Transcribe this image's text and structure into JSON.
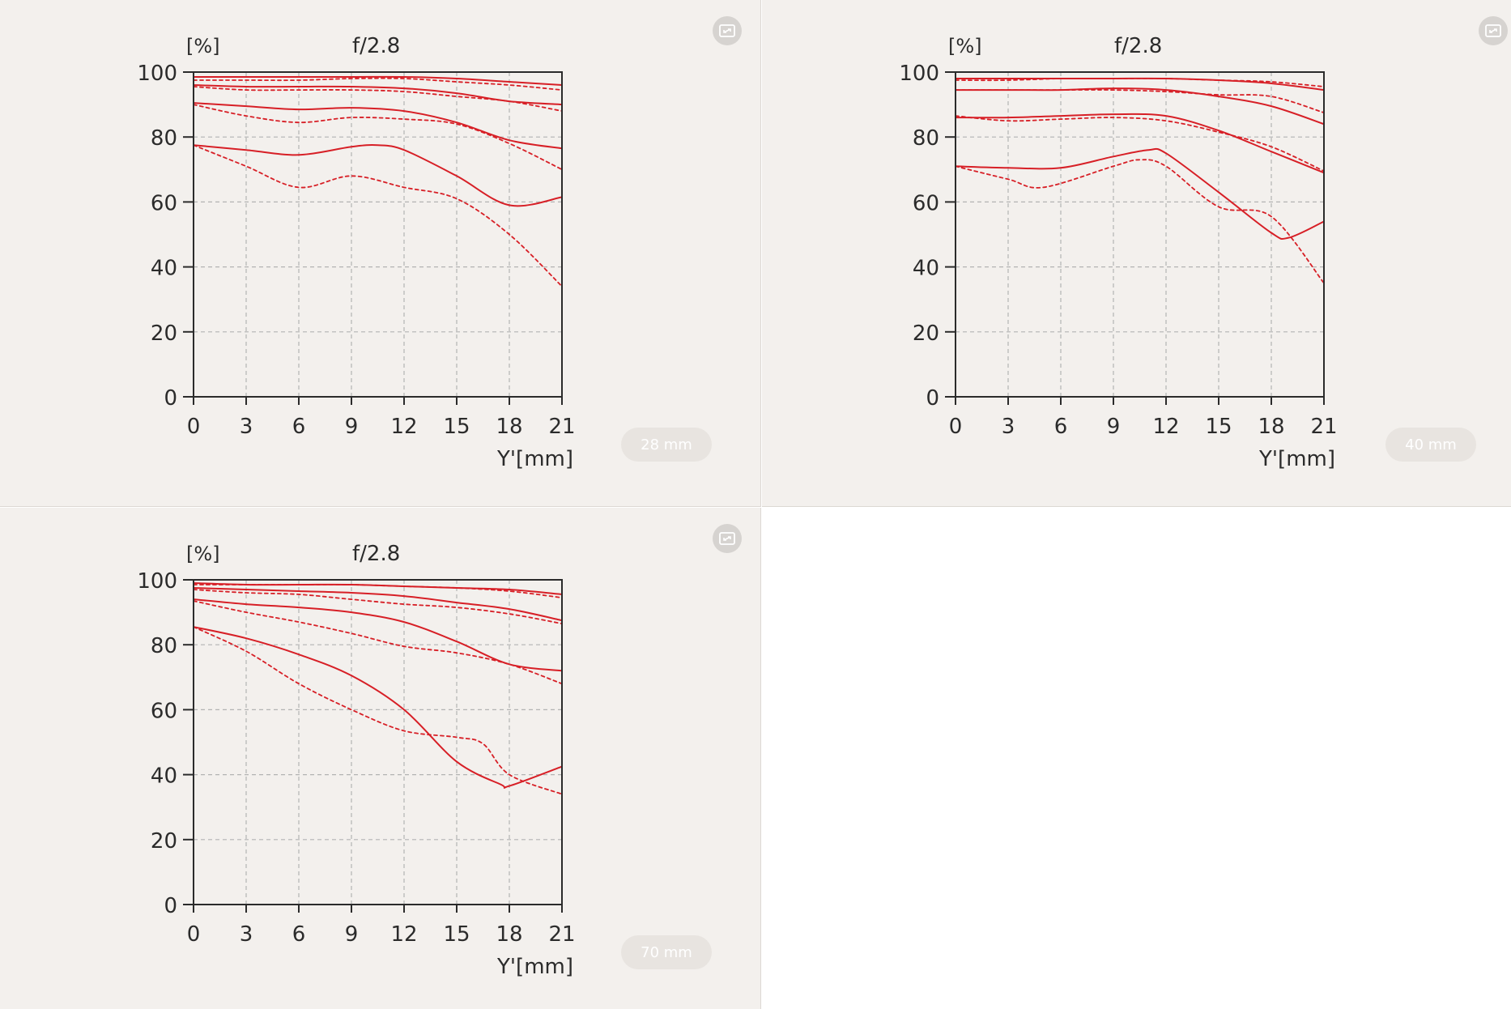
{
  "colors": {
    "curve": "#d71f26",
    "panel_bg": "#f3f0ed",
    "grid": "#b3b3b3",
    "axis": "#2b2b2b"
  },
  "icons": {
    "expand": "expand-icon"
  },
  "chart_data": [
    {
      "type": "line",
      "title": "f/2.8",
      "ylabel": "[%]",
      "xlabel": "Y'[mm]",
      "badge": "28 mm",
      "xlim": [
        0,
        21
      ],
      "ylim": [
        0,
        100
      ],
      "xticks": [
        0,
        3,
        6,
        9,
        12,
        15,
        18,
        21
      ],
      "yticks": [
        0,
        20,
        40,
        60,
        80,
        100
      ],
      "grid": true,
      "series": [
        {
          "style": "solid",
          "x": [
            0,
            3,
            6,
            9,
            12,
            15,
            18,
            21
          ],
          "y": [
            98.5,
            98.5,
            98.5,
            98.5,
            98.5,
            98,
            97,
            96
          ]
        },
        {
          "style": "dashed",
          "x": [
            0,
            3,
            6,
            9,
            12,
            15,
            18,
            21
          ],
          "y": [
            97.5,
            97.5,
            97.5,
            98,
            98,
            97,
            96,
            94.5
          ]
        },
        {
          "style": "solid",
          "x": [
            0,
            3,
            6,
            9,
            12,
            15,
            18,
            21
          ],
          "y": [
            96,
            95.5,
            95.5,
            95.5,
            95,
            93.5,
            91,
            90
          ]
        },
        {
          "style": "dashed",
          "x": [
            0,
            3,
            6,
            9,
            12,
            15,
            18,
            21
          ],
          "y": [
            95.5,
            94.5,
            94.5,
            94.5,
            94,
            92.5,
            91,
            88
          ]
        },
        {
          "style": "solid",
          "x": [
            0,
            3,
            6,
            9,
            12,
            15,
            18,
            21
          ],
          "y": [
            90.5,
            89.5,
            88.5,
            89,
            88,
            84.5,
            79,
            76.5
          ]
        },
        {
          "style": "dashed",
          "x": [
            0,
            3,
            6,
            9,
            12,
            15,
            18,
            21
          ],
          "y": [
            90,
            86.5,
            84.5,
            86,
            85.5,
            84,
            78,
            70
          ]
        },
        {
          "style": "solid",
          "x": [
            0,
            3,
            6,
            9,
            10.5,
            12,
            15,
            18,
            21
          ],
          "y": [
            77.5,
            76,
            74.5,
            77,
            77.5,
            76,
            68,
            59,
            61.5
          ]
        },
        {
          "style": "dashed",
          "x": [
            0,
            3,
            6,
            9,
            12,
            15,
            18,
            21
          ],
          "y": [
            77.5,
            71,
            64.5,
            68,
            64.5,
            61,
            50,
            34
          ]
        }
      ]
    },
    {
      "type": "line",
      "title": "f/2.8",
      "ylabel": "[%]",
      "xlabel": "Y'[mm]",
      "badge": "40 mm",
      "xlim": [
        0,
        21
      ],
      "ylim": [
        0,
        100
      ],
      "xticks": [
        0,
        3,
        6,
        9,
        12,
        15,
        18,
        21
      ],
      "yticks": [
        0,
        20,
        40,
        60,
        80,
        100
      ],
      "grid": true,
      "series": [
        {
          "style": "solid",
          "x": [
            0,
            3,
            6,
            9,
            12,
            15,
            18,
            21
          ],
          "y": [
            98,
            98,
            98,
            98,
            98,
            97.5,
            96.5,
            94.5
          ]
        },
        {
          "style": "dashed",
          "x": [
            0,
            3,
            6,
            9,
            12,
            15,
            18,
            21
          ],
          "y": [
            97.5,
            97.5,
            98,
            98,
            98,
            97.5,
            97,
            95.5
          ]
        },
        {
          "style": "solid",
          "x": [
            0,
            3,
            6,
            9,
            12,
            15,
            18,
            21
          ],
          "y": [
            94.5,
            94.5,
            94.5,
            95,
            94.5,
            92.5,
            89.5,
            84
          ]
        },
        {
          "style": "dashed",
          "x": [
            0,
            3,
            6,
            9,
            12,
            15,
            18,
            21
          ],
          "y": [
            94.5,
            94.5,
            94.5,
            94.5,
            94,
            93,
            92.5,
            87.5
          ]
        },
        {
          "style": "solid",
          "x": [
            0,
            3,
            6,
            9,
            12,
            15,
            18,
            21
          ],
          "y": [
            86,
            86,
            86.5,
            87,
            86.5,
            82,
            75.5,
            69
          ]
        },
        {
          "style": "dashed",
          "x": [
            0,
            3,
            6,
            9,
            12,
            15,
            18,
            21
          ],
          "y": [
            86.5,
            85,
            85.5,
            86,
            85,
            81.5,
            77,
            69.5
          ]
        },
        {
          "style": "solid",
          "x": [
            0,
            3,
            6,
            9,
            11,
            12,
            15,
            18,
            19,
            21
          ],
          "y": [
            71,
            70.5,
            70.5,
            74,
            76,
            75,
            63,
            50.5,
            49,
            54
          ]
        },
        {
          "style": "dashed",
          "x": [
            0,
            3,
            5,
            9,
            10.5,
            12,
            15,
            18,
            21
          ],
          "y": [
            71,
            67,
            64.5,
            71,
            73,
            71,
            58.5,
            55.5,
            35
          ]
        }
      ]
    },
    {
      "type": "line",
      "title": "f/2.8",
      "ylabel": "[%]",
      "xlabel": "Y'[mm]",
      "badge": "70 mm",
      "xlim": [
        0,
        21
      ],
      "ylim": [
        0,
        100
      ],
      "xticks": [
        0,
        3,
        6,
        9,
        12,
        15,
        18,
        21
      ],
      "yticks": [
        0,
        20,
        40,
        60,
        80,
        100
      ],
      "grid": true,
      "series": [
        {
          "style": "solid",
          "x": [
            0,
            3,
            6,
            9,
            12,
            15,
            18,
            21
          ],
          "y": [
            99,
            98.5,
            98.5,
            98.5,
            98,
            97.5,
            97,
            95.5
          ]
        },
        {
          "style": "dashed",
          "x": [
            0,
            3,
            6,
            9,
            12,
            15,
            18,
            21
          ],
          "y": [
            98.5,
            98.5,
            98.5,
            98.5,
            98,
            97.5,
            96.5,
            94.5
          ]
        },
        {
          "style": "solid",
          "x": [
            0,
            3,
            6,
            9,
            12,
            15,
            18,
            21
          ],
          "y": [
            97.5,
            97,
            96.5,
            96,
            95,
            93,
            91,
            87.5
          ]
        },
        {
          "style": "dashed",
          "x": [
            0,
            3,
            6,
            9,
            12,
            15,
            18,
            21
          ],
          "y": [
            97,
            96,
            95.5,
            94,
            92.5,
            91.5,
            89.5,
            86.5
          ]
        },
        {
          "style": "solid",
          "x": [
            0,
            3,
            6,
            9,
            12,
            15,
            18,
            21
          ],
          "y": [
            94,
            92.5,
            91.5,
            90,
            87,
            81,
            74,
            72
          ]
        },
        {
          "style": "dashed",
          "x": [
            0,
            3,
            6,
            9,
            12,
            15,
            18,
            21
          ],
          "y": [
            93.5,
            90,
            87,
            83.5,
            79.5,
            77.5,
            74,
            68
          ]
        },
        {
          "style": "solid",
          "x": [
            0,
            3,
            6,
            9,
            12,
            15,
            17.5,
            18,
            21
          ],
          "y": [
            85.5,
            82,
            77,
            70.5,
            60,
            44,
            37,
            36.5,
            42.5
          ]
        },
        {
          "style": "dashed",
          "x": [
            0,
            3,
            6,
            9,
            12,
            15,
            16.5,
            18,
            21
          ],
          "y": [
            85.5,
            78,
            68,
            60,
            53.5,
            51.5,
            49.5,
            40,
            34
          ]
        }
      ]
    }
  ]
}
